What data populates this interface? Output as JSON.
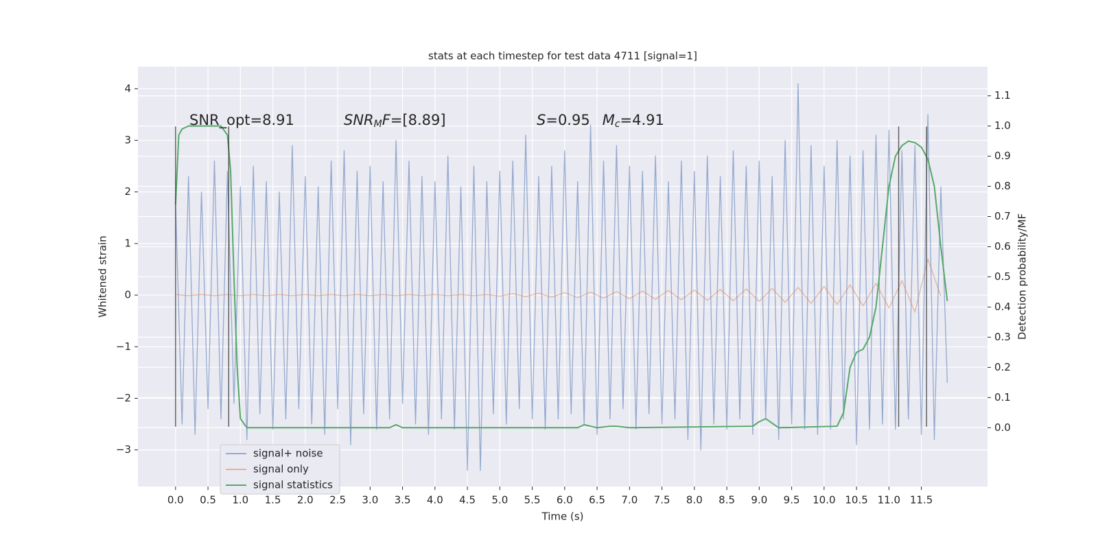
{
  "chart_data": {
    "type": "line",
    "title": "stats at each timestep for test data 4711 [signal=1]",
    "xlabel": "Time (s)",
    "ylabel": "Whitened strain",
    "y2label": "Detection probability/MF",
    "xlim": [
      -0.58,
      12.52
    ],
    "ylim": [
      -3.71,
      4.43
    ],
    "y2lim": [
      -0.195,
      1.197
    ],
    "xticks": [
      {
        "value": 0,
        "label": "0.0"
      },
      0.5,
      {
        "value": 1,
        "label": "1.0"
      },
      1.5,
      {
        "value": 2,
        "label": "2.0"
      },
      2.5,
      {
        "value": 3,
        "label": "3.0"
      },
      3.5,
      {
        "value": 4,
        "label": "4.0"
      },
      4.5,
      {
        "value": 5,
        "label": "5.0"
      },
      5.5,
      {
        "value": 6,
        "label": "6.0"
      },
      6.5,
      {
        "value": 7,
        "label": "7.0"
      },
      7.5,
      {
        "value": 8,
        "label": "8.0"
      },
      8.5,
      {
        "value": 9,
        "label": "9.0"
      },
      9.5,
      {
        "value": 10,
        "label": "10.0"
      },
      10.5,
      {
        "value": 11,
        "label": "11.0"
      },
      11.5
    ],
    "yticks": [
      {
        "value": -3,
        "label": "−3"
      },
      {
        "value": -2,
        "label": "−2"
      },
      {
        "value": -1,
        "label": "−1"
      },
      0,
      1,
      2,
      3,
      4
    ],
    "y2ticks": [
      {
        "value": 0,
        "label": "0.0"
      },
      0.1,
      0.2,
      0.3,
      0.4,
      0.5,
      0.6,
      0.7,
      0.8,
      0.9,
      {
        "value": 1,
        "label": "1.0"
      },
      1.1
    ],
    "grid": true,
    "legend": "lower left",
    "series": [
      {
        "name": "signal+ noise",
        "color": "#4c72b0",
        "axis": "y",
        "x": [
          0,
          0.1,
          0.2,
          0.3,
          0.4,
          0.5,
          0.6,
          0.7,
          0.8,
          0.9,
          1,
          1.1,
          1.2,
          1.3,
          1.4,
          1.5,
          1.6,
          1.7,
          1.8,
          1.9,
          2,
          2.1,
          2.2,
          2.3,
          2.4,
          2.5,
          2.6,
          2.7,
          2.8,
          2.9,
          3,
          3.1,
          3.2,
          3.3,
          3.4,
          3.5,
          3.6,
          3.7,
          3.8,
          3.9,
          4,
          4.1,
          4.2,
          4.3,
          4.4,
          4.5,
          4.6,
          4.7,
          4.8,
          4.9,
          5,
          5.1,
          5.2,
          5.3,
          5.4,
          5.5,
          5.6,
          5.7,
          5.8,
          5.9,
          6,
          6.1,
          6.2,
          6.3,
          6.4,
          6.5,
          6.6,
          6.7,
          6.8,
          6.9,
          7,
          7.1,
          7.2,
          7.3,
          7.4,
          7.5,
          7.6,
          7.7,
          7.8,
          7.9,
          8,
          8.1,
          8.2,
          8.3,
          8.4,
          8.5,
          8.6,
          8.7,
          8.8,
          8.9,
          9,
          9.1,
          9.2,
          9.3,
          9.4,
          9.5,
          9.6,
          9.7,
          9.8,
          9.9,
          10,
          10.1,
          10.2,
          10.3,
          10.4,
          10.5,
          10.6,
          10.7,
          10.8,
          10.9,
          11,
          11.1,
          11.2,
          11.3,
          11.4,
          11.5,
          11.6,
          11.7,
          11.8,
          11.9
        ],
        "values": [
          1.8,
          -2.5,
          2.3,
          -2.7,
          2.0,
          -2.2,
          2.6,
          -2.4,
          2.4,
          -2.1,
          2.1,
          -2.8,
          2.5,
          -2.3,
          2.2,
          -2.6,
          2.0,
          -2.4,
          2.9,
          -2.2,
          2.3,
          -2.5,
          2.1,
          -2.7,
          2.6,
          -2.2,
          2.8,
          -2.9,
          2.4,
          -2.3,
          2.5,
          -2.6,
          2.2,
          -2.4,
          3.0,
          -2.1,
          2.6,
          -2.5,
          2.3,
          -2.7,
          2.2,
          -2.4,
          2.7,
          -2.6,
          2.1,
          -3.4,
          2.5,
          -3.4,
          2.2,
          -2.3,
          2.4,
          -2.5,
          2.6,
          -2.2,
          3.1,
          -2.4,
          2.3,
          -2.6,
          2.5,
          -2.4,
          2.8,
          -2.3,
          2.2,
          -2.5,
          3.3,
          -2.7,
          2.6,
          -2.4,
          2.9,
          -2.2,
          2.5,
          -2.6,
          2.4,
          -2.3,
          2.7,
          -2.5,
          2.2,
          -2.4,
          2.6,
          -2.8,
          2.4,
          -3.0,
          2.7,
          -2.5,
          2.3,
          -2.6,
          2.8,
          -2.4,
          2.5,
          -2.7,
          2.6,
          -2.4,
          2.3,
          -2.8,
          3.0,
          -2.5,
          4.1,
          -2.6,
          2.9,
          -2.7,
          2.5,
          -2.6,
          3.0,
          -2.4,
          2.7,
          -2.9,
          2.8,
          -2.6,
          3.1,
          -2.5,
          3.2,
          -2.6,
          2.8,
          -2.4,
          2.9,
          -2.7,
          3.5,
          -2.8,
          2.1,
          -1.7
        ]
      },
      {
        "name": "signal only",
        "color": "#dd8452",
        "axis": "y",
        "x": [
          0,
          0.2,
          0.4,
          0.6,
          0.8,
          1,
          1.2,
          1.4,
          1.6,
          1.8,
          2,
          2.2,
          2.4,
          2.6,
          2.8,
          3,
          3.2,
          3.4,
          3.6,
          3.8,
          4,
          4.2,
          4.4,
          4.6,
          4.8,
          5,
          5.2,
          5.4,
          5.6,
          5.8,
          6,
          6.2,
          6.4,
          6.6,
          6.8,
          7,
          7.2,
          7.4,
          7.6,
          7.8,
          8,
          8.2,
          8.4,
          8.6,
          8.8,
          9,
          9.2,
          9.4,
          9.6,
          9.8,
          10,
          10.2,
          10.4,
          10.6,
          10.8,
          11,
          11.2,
          11.4,
          11.6,
          11.8
        ],
        "values": [
          0.01,
          -0.01,
          0.01,
          -0.01,
          0.01,
          -0.01,
          0.01,
          -0.01,
          0.01,
          -0.01,
          0.01,
          -0.01,
          0.01,
          -0.01,
          0.01,
          -0.01,
          0.01,
          -0.01,
          0.01,
          -0.01,
          0.01,
          -0.01,
          0.01,
          -0.01,
          0.01,
          -0.02,
          0.03,
          -0.03,
          0.04,
          -0.04,
          0.05,
          -0.05,
          0.06,
          -0.06,
          0.07,
          -0.07,
          0.08,
          -0.08,
          0.09,
          -0.09,
          0.1,
          -0.1,
          0.11,
          -0.11,
          0.12,
          -0.12,
          0.13,
          -0.14,
          0.15,
          -0.16,
          0.17,
          -0.18,
          0.2,
          -0.21,
          0.23,
          -0.25,
          0.28,
          -0.33,
          0.7,
          -0.02
        ]
      },
      {
        "name": "signal statistics",
        "color": "#55a868",
        "axis": "y2",
        "x": [
          0,
          0.05,
          0.1,
          0.2,
          0.7,
          0.8,
          0.85,
          0.9,
          0.95,
          1,
          1.1,
          3.3,
          3.4,
          3.5,
          6.2,
          6.3,
          6.5,
          6.7,
          6.8,
          7,
          8.9,
          9,
          9.1,
          9.2,
          9.3,
          10.2,
          10.3,
          10.4,
          10.5,
          10.6,
          10.7,
          10.8,
          10.9,
          11,
          11.1,
          11.2,
          11.3,
          11.4,
          11.5,
          11.6,
          11.7,
          11.8,
          11.9
        ],
        "values": [
          0.74,
          0.97,
          0.99,
          1.0,
          1.0,
          0.97,
          0.85,
          0.5,
          0.2,
          0.03,
          0.0,
          0.0,
          0.01,
          0.0,
          0.0,
          0.01,
          0.0,
          0.005,
          0.005,
          0.0,
          0.005,
          0.02,
          0.03,
          0.015,
          0.0,
          0.005,
          0.05,
          0.2,
          0.25,
          0.26,
          0.3,
          0.4,
          0.6,
          0.8,
          0.9,
          0.935,
          0.95,
          0.945,
          0.93,
          0.89,
          0.8,
          0.6,
          0.42
        ]
      }
    ],
    "vlines": {
      "color": "#333333",
      "x": [
        0,
        0.82,
        11.15,
        11.58
      ],
      "ylim": [
        -2.55,
        3.27
      ]
    },
    "annotations": [
      [
        {
          "text": "SNR_opt=8.91"
        }
      ],
      [
        {
          "text": "SNR",
          "style": "italic"
        },
        {
          "text": "M",
          "style": "sub"
        },
        {
          "text": "F",
          "style": "italic"
        },
        {
          "text": "=[8.89]"
        }
      ],
      [
        {
          "text": "S",
          "style": "italic"
        },
        {
          "text": "=0.95"
        },
        {
          "text": "M",
          "style": "italic"
        },
        {
          "text": "c",
          "style": "sub"
        },
        {
          "text": "=4.91"
        }
      ]
    ]
  }
}
